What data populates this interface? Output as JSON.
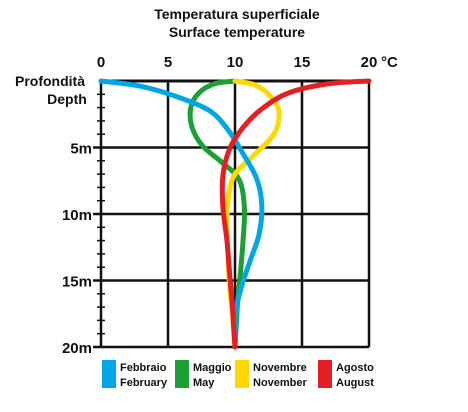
{
  "chart_data": {
    "type": "line",
    "title": "Temperatura superficiale",
    "subtitle": "Surface temperature",
    "ylabel_line1": "Profondità",
    "ylabel_line2": "Depth",
    "x_unit": "°C",
    "xlim": [
      0,
      20
    ],
    "ylim": [
      0,
      20
    ],
    "x_ticks": [
      0,
      5,
      10,
      15,
      20
    ],
    "x_tick_labels": [
      "0",
      "5",
      "10",
      "15",
      "20"
    ],
    "y_ticks": [
      5,
      10,
      15,
      20
    ],
    "y_tick_labels": [
      "5m",
      "10m",
      "15m",
      "20m"
    ],
    "grid": true,
    "legend_position": "bottom",
    "series": [
      {
        "name": "Febbraio",
        "name_en": "February",
        "color": "#00a6e6",
        "points": [
          [
            0,
            0
          ],
          [
            3,
            0.4
          ],
          [
            6,
            1.3
          ],
          [
            8.2,
            2.3
          ],
          [
            9.5,
            3.7
          ],
          [
            10.5,
            5.3
          ],
          [
            11.6,
            7.3
          ],
          [
            12,
            9.3
          ],
          [
            11.8,
            11.5
          ],
          [
            11.1,
            13.6
          ],
          [
            10.5,
            15.4
          ],
          [
            10.1,
            17.1
          ],
          [
            10.0,
            18.5
          ],
          [
            10,
            20
          ]
        ]
      },
      {
        "name": "Maggio",
        "name_en": "May",
        "color": "#1aa035",
        "points": [
          [
            10,
            0
          ],
          [
            8.5,
            0.2
          ],
          [
            7.3,
            0.9
          ],
          [
            6.7,
            2
          ],
          [
            6.8,
            3.5
          ],
          [
            7.6,
            4.9
          ],
          [
            9,
            6.1
          ],
          [
            10.3,
            7.4
          ],
          [
            10.7,
            9.5
          ],
          [
            10.6,
            12
          ],
          [
            10.4,
            14.5
          ],
          [
            10.2,
            16.5
          ],
          [
            10.1,
            18.3
          ],
          [
            10,
            20
          ]
        ]
      },
      {
        "name": "Novembre",
        "name_en": "November",
        "color": "#ffd800",
        "points": [
          [
            10,
            0
          ],
          [
            11.5,
            0.3
          ],
          [
            12.7,
            1.2
          ],
          [
            13.3,
            2.4
          ],
          [
            12.9,
            4
          ],
          [
            11.5,
            5.5
          ],
          [
            10,
            7
          ],
          [
            9.5,
            8.8
          ],
          [
            9.4,
            11
          ],
          [
            9.5,
            13.5
          ],
          [
            9.6,
            15.5
          ],
          [
            9.8,
            17.5
          ],
          [
            10,
            20
          ]
        ]
      },
      {
        "name": "Agosto",
        "name_en": "August",
        "color": "#e31e24",
        "points": [
          [
            20,
            0
          ],
          [
            17,
            0.2
          ],
          [
            14,
            0.9
          ],
          [
            12,
            2.1
          ],
          [
            10.6,
            3.5
          ],
          [
            9.6,
            5.1
          ],
          [
            9.1,
            7.1
          ],
          [
            9.1,
            9.5
          ],
          [
            9.4,
            12
          ],
          [
            9.6,
            14.5
          ],
          [
            9.8,
            16.8
          ],
          [
            9.9,
            18.5
          ],
          [
            10,
            20
          ]
        ]
      }
    ]
  }
}
